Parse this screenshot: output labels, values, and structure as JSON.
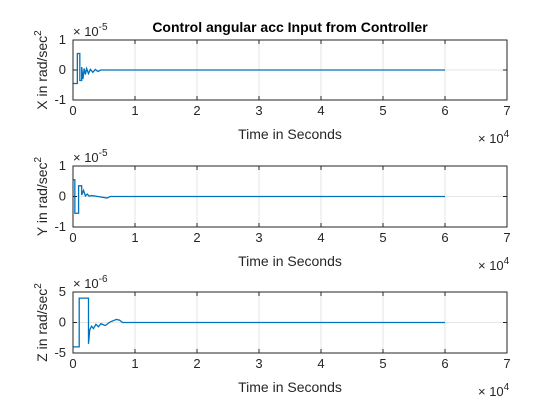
{
  "figure": {
    "title": "Control angular acc Input from Controller"
  },
  "chart_data": [
    {
      "type": "line",
      "id": "x",
      "ylabel": "X in rad/sec",
      "ylabel_sup": "2",
      "xlabel": "Time in Seconds",
      "x_exponent_base": "× 10",
      "x_exponent_power": "4",
      "y_exponent_base": "× 10",
      "y_exponent_power": "-5",
      "xlim": [
        0,
        7
      ],
      "ylim": [
        -1,
        1
      ],
      "xticks": [
        "0",
        "1",
        "2",
        "3",
        "4",
        "5",
        "6",
        "7"
      ],
      "yticks": [
        "-1",
        "0",
        "1"
      ],
      "grid": true,
      "color": "#0072BD",
      "series": [
        {
          "x": [
            0,
            0.07,
            0.07,
            0.11,
            0.11,
            0.14,
            0.14,
            0.16,
            0.18,
            0.2,
            0.22,
            0.25,
            0.28,
            0.32,
            0.36,
            0.4,
            0.45,
            0.5,
            6.0
          ],
          "y": [
            -0.45,
            -0.45,
            0.55,
            0.55,
            -0.35,
            -0.35,
            0.1,
            -0.3,
            0.05,
            -0.15,
            0.05,
            -0.12,
            0.02,
            -0.08,
            0.02,
            -0.05,
            0.0,
            0.0,
            0.0
          ]
        }
      ]
    },
    {
      "type": "line",
      "id": "y",
      "ylabel": "Y in rad/sec",
      "ylabel_sup": "2",
      "xlabel": "Time in Seconds",
      "x_exponent_base": "× 10",
      "x_exponent_power": "4",
      "y_exponent_base": "× 10",
      "y_exponent_power": "-5",
      "xlim": [
        0,
        7
      ],
      "ylim": [
        -1,
        1
      ],
      "xticks": [
        "0",
        "1",
        "2",
        "3",
        "4",
        "5",
        "6",
        "7"
      ],
      "yticks": [
        "-1",
        "0",
        "1"
      ],
      "grid": true,
      "color": "#0072BD",
      "series": [
        {
          "x": [
            0,
            0.03,
            0.03,
            0.09,
            0.09,
            0.14,
            0.14,
            0.17,
            0.2,
            0.23,
            0.26,
            0.3,
            0.4,
            0.55,
            0.6,
            6.0
          ],
          "y": [
            0.55,
            0.55,
            -0.55,
            -0.55,
            0.35,
            0.35,
            0.05,
            0.2,
            0.02,
            0.08,
            0.01,
            0.03,
            0.0,
            -0.05,
            0.0,
            0.0
          ]
        }
      ]
    },
    {
      "type": "line",
      "id": "z",
      "ylabel": "Z in rad/sec",
      "ylabel_sup": "2",
      "xlabel": "Time in Seconds",
      "x_exponent_base": "× 10",
      "x_exponent_power": "4",
      "y_exponent_base": "× 10",
      "y_exponent_power": "-6",
      "xlim": [
        0,
        7
      ],
      "ylim": [
        -5,
        5
      ],
      "xticks": [
        "0",
        "1",
        "2",
        "3",
        "4",
        "5",
        "6",
        "7"
      ],
      "yticks": [
        "-5",
        "0",
        "5"
      ],
      "grid": true,
      "color": "#0072BD",
      "series": [
        {
          "x": [
            0,
            0.1,
            0.1,
            0.25,
            0.25,
            0.27,
            0.3,
            0.33,
            0.37,
            0.41,
            0.45,
            0.52,
            0.6,
            0.7,
            0.75,
            0.8,
            6.0
          ],
          "y": [
            -4,
            -4,
            4,
            4,
            -3.5,
            -1.2,
            -0.6,
            -1.0,
            -0.3,
            -0.7,
            -0.2,
            -0.5,
            0.1,
            0.5,
            0.4,
            0.0,
            0.0
          ]
        }
      ]
    }
  ]
}
